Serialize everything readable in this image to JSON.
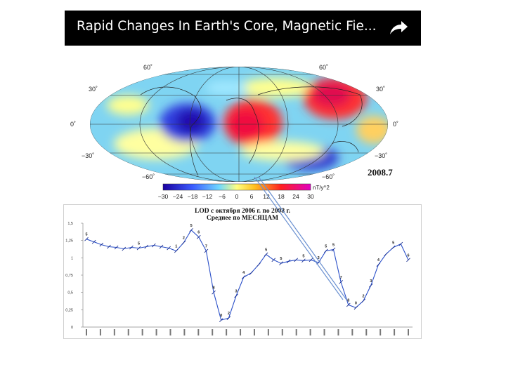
{
  "video": {
    "title": "Rapid Changes In Earth's Core, Magnetic Fie...",
    "share_icon": "share-arrow-icon"
  },
  "map": {
    "year_label": "2008.7",
    "lat_labels_left": [
      "60˚",
      "30˚",
      "0˚",
      "−30˚",
      "−60˚"
    ],
    "lat_labels_right": [
      "60˚",
      "30˚",
      "0˚",
      "−30˚",
      "−60˚"
    ],
    "colorbar_unit": "nT/y^2",
    "colorbar_ticks": [
      "−30",
      "−24",
      "−18",
      "−12",
      "−6",
      "0",
      "6",
      "12",
      "18",
      "24",
      "30"
    ]
  },
  "chart_data": {
    "type": "line",
    "title": "LOD с октября  2006 г. по 2008 г.",
    "subtitle": "Среднее по МЕСЯЦАМ",
    "xlabel": "",
    "ylabel": "",
    "ylim": [
      0,
      1.5
    ],
    "y_ticks": [
      "0",
      "0,25",
      "0,5",
      "0,75",
      "1",
      "1,25",
      "1,5"
    ],
    "grid": false,
    "series": [
      {
        "values": [
          1.27,
          1.23,
          1.19,
          1.16,
          1.15,
          1.13,
          1.15,
          1.14,
          1.16,
          1.18,
          1.16,
          1.14,
          1.1,
          1.22,
          1.4,
          1.3,
          1.1,
          0.5,
          0.1,
          0.13,
          0.45,
          0.72,
          0.78,
          0.9,
          1.05,
          0.97,
          0.92,
          0.95,
          0.97,
          0.96,
          0.97,
          0.93,
          1.1,
          1.12,
          0.65,
          0.32,
          0.28,
          0.38,
          0.6,
          0.9,
          1.05,
          1.15,
          1.2,
          0.97
        ],
        "point_labels": [
          "5",
          "",
          "",
          "",
          "",
          "",
          "",
          "5",
          "",
          "",
          "",
          "",
          "1",
          "2",
          "5",
          "6",
          "7",
          "8",
          "0",
          "2",
          "3",
          "4",
          "",
          "",
          "5",
          "",
          "5",
          "",
          "",
          "5",
          "",
          "3",
          "5",
          "5",
          "7",
          "8",
          "0",
          "2",
          "3",
          "4",
          "",
          "5",
          "",
          "6"
        ]
      }
    ]
  }
}
